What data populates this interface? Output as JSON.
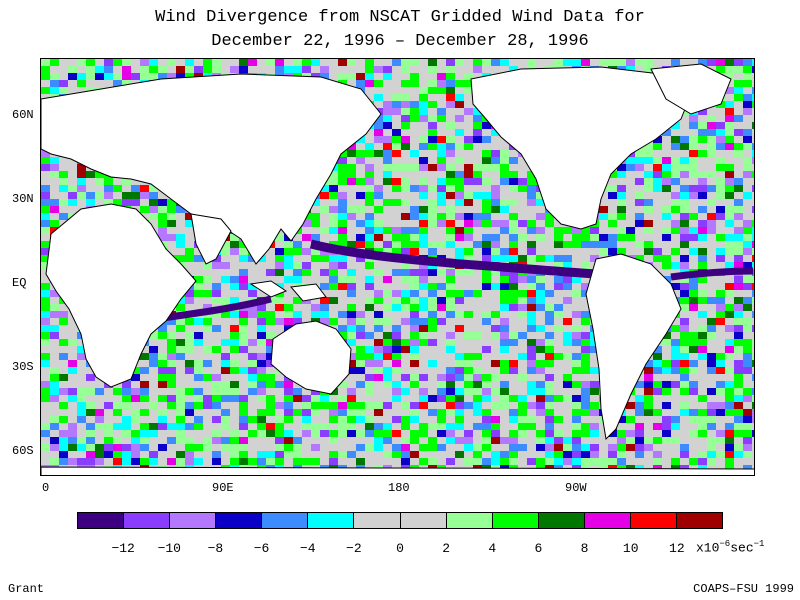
{
  "title_line1": "Wind Divergence from NSCAT Gridded Wind Data for",
  "title_line2": "December 22, 1996 – December 28, 1996",
  "lat_labels": [
    "60N",
    "30N",
    "EQ",
    "30S",
    "60S"
  ],
  "lon_labels": [
    "0",
    "90E",
    "180",
    "90W"
  ],
  "colorbar": {
    "colors": [
      "#3c0080",
      "#8a3cff",
      "#b478ff",
      "#0a00c8",
      "#3c8cff",
      "#00ffff",
      "#d2d2d2",
      "#d2d2d2",
      "#96ff96",
      "#00ff00",
      "#007800",
      "#e600e6",
      "#ff0000",
      "#a00000"
    ],
    "tick_labels": [
      "−12",
      "−10",
      "−8",
      "−6",
      "−4",
      "−2",
      "0",
      "2",
      "4",
      "6",
      "8",
      "10",
      "12"
    ],
    "unit_base": "x10",
    "unit_exp": "−6",
    "unit_tail": "sec",
    "unit_tail_exp": "−1"
  },
  "footer_left": "Grant",
  "footer_right": "COAPS–FSU 1999"
}
